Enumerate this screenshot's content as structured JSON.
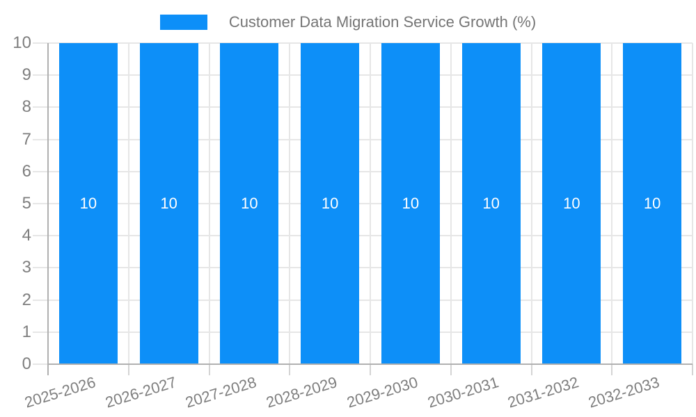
{
  "chart_data": {
    "type": "bar",
    "legend_label": "Customer Data Migration Service Growth (%)",
    "categories": [
      "2025-2026",
      "2026-2027",
      "2027-2028",
      "2028-2029",
      "2029-2030",
      "2030-2031",
      "2031-2032",
      "2032-2033"
    ],
    "series": [
      {
        "name": "Customer Data Migration Service Growth (%)",
        "values": [
          10,
          10,
          10,
          10,
          10,
          10,
          10,
          10
        ]
      }
    ],
    "bar_value_labels": [
      "10",
      "10",
      "10",
      "10",
      "10",
      "10",
      "10",
      "10"
    ],
    "ylim": [
      0,
      10
    ],
    "yticks": [
      0,
      1,
      2,
      3,
      4,
      5,
      6,
      7,
      8,
      9,
      10
    ],
    "grid": true,
    "legend_position": "top",
    "x_label_angle_deg": -17,
    "colors": {
      "bar": "#0d8ff8",
      "grid": "#e6e6e6",
      "axis": "#b0b0b0",
      "tick": "#d4d4d4",
      "axis_label": "#7e7e7e",
      "legend_text": "#757575",
      "bar_label": "#ffffff",
      "background": "#ffffff"
    }
  }
}
